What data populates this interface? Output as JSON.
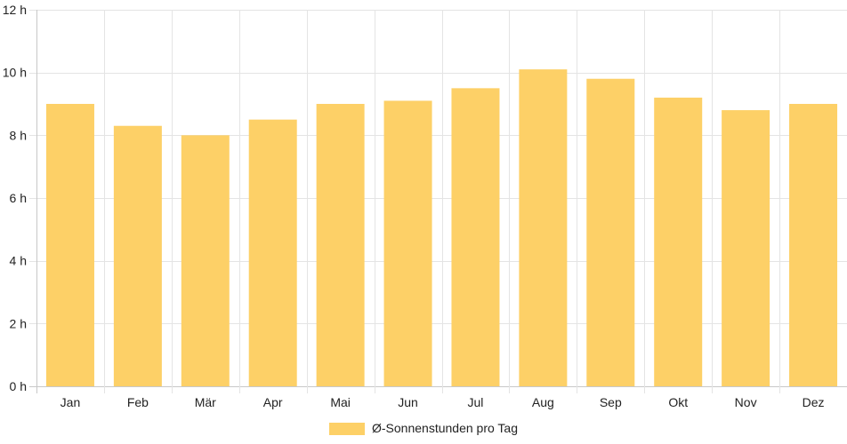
{
  "chart_data": {
    "type": "bar",
    "categories": [
      "Jan",
      "Feb",
      "Mär",
      "Apr",
      "Mai",
      "Jun",
      "Jul",
      "Aug",
      "Sep",
      "Okt",
      "Nov",
      "Dez"
    ],
    "series": [
      {
        "name": "Ø-Sonnenstunden pro Tag",
        "values": [
          9.0,
          8.3,
          8.0,
          8.5,
          9.0,
          9.1,
          9.5,
          10.1,
          9.8,
          9.2,
          8.8,
          9.0
        ]
      }
    ],
    "ylim": [
      0,
      12
    ],
    "yticks": [
      0,
      2,
      4,
      6,
      8,
      10,
      12
    ],
    "ytick_labels": [
      "0 h",
      "2 h",
      "4 h",
      "6 h",
      "8 h",
      "10 h",
      "12 h"
    ],
    "grid": true,
    "legend_position": "bottom",
    "colors": {
      "bar": "#fdd067",
      "grid": "#e4e4e4",
      "axis": "#c8c8c8",
      "text": "#222222"
    }
  }
}
